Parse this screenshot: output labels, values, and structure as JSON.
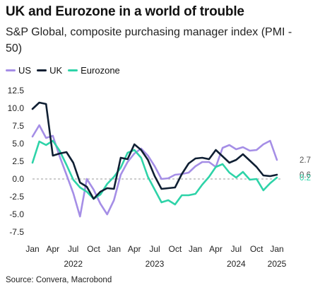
{
  "title": "UK and Eurozone in a world of trouble",
  "subtitle": "S&P Global, composite purchasing manager index (PMI - 50)",
  "source": "Source: Convera, Macrobond",
  "colors": {
    "US": "#a58ee6",
    "UK": "#0f1f33",
    "Eurozone": "#2ed3a8",
    "zero_line": "#9a9a9a",
    "end_label": "#555555"
  },
  "chart_data": {
    "type": "line",
    "x_months": [
      "2022-01",
      "2022-02",
      "2022-03",
      "2022-04",
      "2022-05",
      "2022-06",
      "2022-07",
      "2022-08",
      "2022-09",
      "2022-10",
      "2022-11",
      "2022-12",
      "2023-01",
      "2023-02",
      "2023-03",
      "2023-04",
      "2023-05",
      "2023-06",
      "2023-07",
      "2023-08",
      "2023-09",
      "2023-10",
      "2023-11",
      "2023-12",
      "2024-01",
      "2024-02",
      "2024-03",
      "2024-04",
      "2024-05",
      "2024-06",
      "2024-07",
      "2024-08",
      "2024-09",
      "2024-10",
      "2024-11",
      "2024-12",
      "2025-01"
    ],
    "series": [
      {
        "name": "US",
        "color": "#a58ee6",
        "end_label": "2.7",
        "values": [
          6.0,
          7.6,
          5.8,
          6.1,
          3.2,
          0.6,
          -2.0,
          -5.3,
          0.0,
          -1.5,
          -3.5,
          -5.0,
          -3.0,
          0.6,
          2.4,
          3.6,
          4.3,
          3.3,
          1.8,
          0.0,
          0.1,
          0.6,
          0.7,
          0.9,
          1.8,
          2.4,
          2.4,
          1.7,
          4.4,
          4.8,
          4.2,
          4.5,
          4.0,
          4.1,
          4.9,
          5.4,
          2.7
        ]
      },
      {
        "name": "UK",
        "color": "#0f1f33",
        "end_label": "0.6",
        "values": [
          9.9,
          10.8,
          10.6,
          3.3,
          3.6,
          3.8,
          2.3,
          -0.5,
          -1.1,
          -2.8,
          -1.8,
          -1.3,
          -1.4,
          3.0,
          2.8,
          4.9,
          4.1,
          2.7,
          0.4,
          -1.4,
          -1.3,
          -1.2,
          0.7,
          2.2,
          2.9,
          3.0,
          2.8,
          4.1,
          3.2,
          2.3,
          2.7,
          3.5,
          2.6,
          1.7,
          0.5,
          0.4,
          0.6
        ]
      },
      {
        "name": "Eurozone",
        "color": "#2ed3a8",
        "end_label": "0.2",
        "values": [
          2.3,
          5.3,
          4.8,
          5.4,
          4.0,
          2.0,
          -0.1,
          -1.2,
          -1.8,
          -2.8,
          -2.2,
          -0.7,
          0.3,
          1.6,
          3.7,
          4.1,
          3.0,
          0.3,
          -1.5,
          -3.3,
          -3.0,
          -3.6,
          -2.3,
          -2.3,
          -2.1,
          -0.8,
          0.3,
          1.7,
          2.1,
          0.9,
          0.2,
          1.0,
          -0.1,
          0.0,
          -1.6,
          -0.6,
          0.2
        ]
      }
    ],
    "y_ticks": [
      "12.5",
      "10.0",
      "7.5",
      "5.0",
      "2.5",
      "0.0",
      "-2.5",
      "-5.0",
      "-7.5"
    ],
    "y_tick_values": [
      12.5,
      10.0,
      7.5,
      5.0,
      2.5,
      0.0,
      -2.5,
      -5.0,
      -7.5
    ],
    "ylim": [
      -8.5,
      13.5
    ],
    "x_tick_labels": [
      {
        "label": "Jan",
        "month": "2022-01"
      },
      {
        "label": "Apr",
        "month": "2022-04"
      },
      {
        "label": "Jul",
        "month": "2022-07"
      },
      {
        "label": "Oct",
        "month": "2022-10"
      },
      {
        "label": "Jan",
        "month": "2023-01"
      },
      {
        "label": "Apr",
        "month": "2023-04"
      },
      {
        "label": "Jul",
        "month": "2023-07"
      },
      {
        "label": "Oct",
        "month": "2023-10"
      },
      {
        "label": "Jan",
        "month": "2024-01"
      },
      {
        "label": "Apr",
        "month": "2024-04"
      },
      {
        "label": "Jul",
        "month": "2024-07"
      },
      {
        "label": "Oct",
        "month": "2024-10"
      },
      {
        "label": "Jan",
        "month": "2025-01"
      }
    ],
    "year_labels": [
      {
        "label": "2022",
        "month": "2022-07"
      },
      {
        "label": "2023",
        "month": "2023-07"
      },
      {
        "label": "2024",
        "month": "2024-07"
      },
      {
        "label": "2025",
        "month": "2025-01"
      }
    ],
    "zero_line": "dashed",
    "grid": false,
    "legend_position": "top-left"
  }
}
